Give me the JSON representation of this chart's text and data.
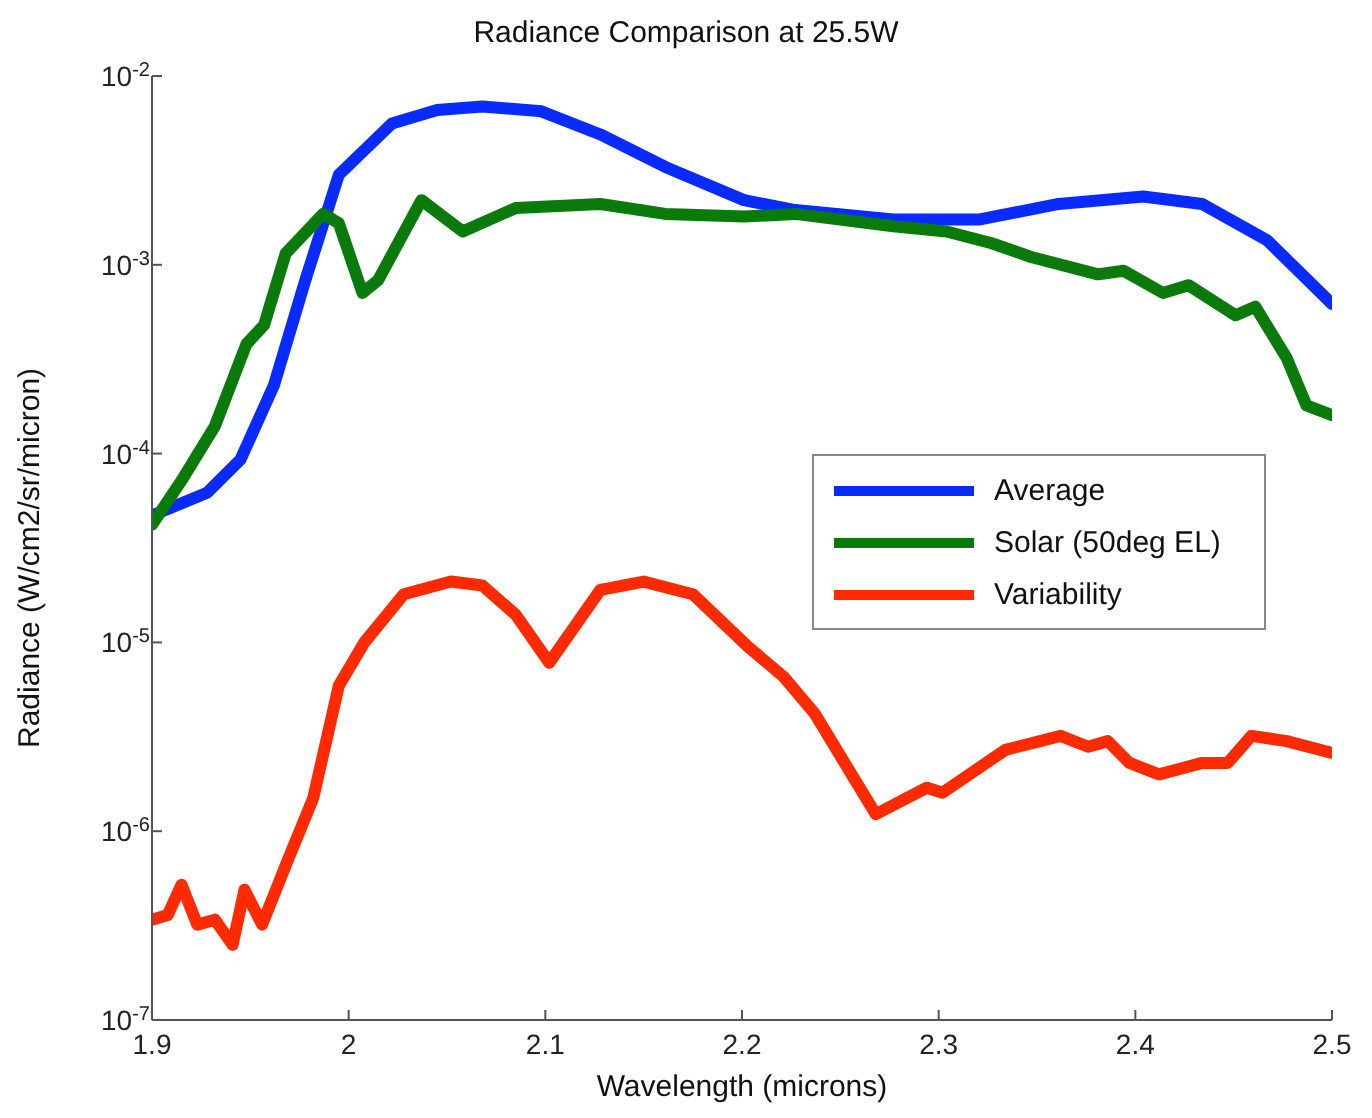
{
  "chart_data": {
    "type": "line",
    "title": "Radiance Comparison at 25.5W",
    "xlabel": "Wavelength (microns)",
    "ylabel": "Radiance (W/cm2/sr/micron)",
    "log": "y",
    "grid": false,
    "legend": "right",
    "marker": "none",
    "line_style": "solid",
    "xlim": [
      1.9,
      2.5
    ],
    "xticks": [
      1.9,
      2,
      2.1,
      2.2,
      2.3,
      2.4,
      2.5
    ],
    "ylim": [
      1e-07,
      0.01
    ],
    "yticks": [
      {
        "value": 1e-07,
        "label": "10$^{-7}$"
      },
      {
        "value": 1e-06,
        "label": "10$^{-6}$"
      },
      {
        "value": 1e-05,
        "label": "10$^{-5}$"
      },
      {
        "value": 0.0001,
        "label": "10$^{-4}$"
      },
      {
        "value": 0.001,
        "label": "10$^{-3}$"
      },
      {
        "value": 0.01,
        "label": "10$^{-2}$"
      }
    ],
    "series": [
      {
        "name": "Average",
        "color": "#0a2bff",
        "x": [
          1.9,
          1.928,
          1.945,
          1.962,
          1.978,
          1.995,
          2.022,
          2.045,
          2.068,
          2.098,
          2.128,
          2.161,
          2.201,
          2.227,
          2.277,
          2.321,
          2.361,
          2.404,
          2.434,
          2.467,
          2.5
        ],
        "values": [
          4.7e-05,
          6.2e-05,
          9.3e-05,
          0.00023,
          0.00083,
          0.003,
          0.0056,
          0.0066,
          0.0069,
          0.0065,
          0.0049,
          0.0033,
          0.0022,
          0.00195,
          0.00174,
          0.00174,
          0.0021,
          0.0023,
          0.0021,
          0.00135,
          0.00062
        ]
      },
      {
        "name": "Solar (50deg EL)",
        "color": "#0a7a0a",
        "x": [
          1.9,
          1.915,
          1.932,
          1.948,
          1.957,
          1.968,
          1.987,
          1.995,
          2.007,
          2.015,
          2.037,
          2.058,
          2.085,
          2.128,
          2.161,
          2.201,
          2.227,
          2.277,
          2.304,
          2.327,
          2.347,
          2.381,
          2.394,
          2.414,
          2.427,
          2.451,
          2.461,
          2.477,
          2.487,
          2.5
        ],
        "values": [
          4.2e-05,
          7.2e-05,
          0.00014,
          0.00038,
          0.00048,
          0.00115,
          0.00186,
          0.00166,
          0.00071,
          0.00083,
          0.0022,
          0.0015,
          0.002,
          0.0021,
          0.00186,
          0.0018,
          0.00186,
          0.0016,
          0.0015,
          0.0013,
          0.0011,
          0.00089,
          0.00093,
          0.00071,
          0.00078,
          0.00054,
          0.0006,
          0.00032,
          0.00018,
          0.00016
        ]
      },
      {
        "name": "Variability",
        "color": "#ff2a00",
        "x": [
          1.9,
          1.908,
          1.915,
          1.923,
          1.932,
          1.941,
          1.947,
          1.956,
          1.968,
          1.982,
          1.995,
          2.008,
          2.028,
          2.052,
          2.068,
          2.085,
          2.102,
          2.128,
          2.15,
          2.175,
          2.203,
          2.221,
          2.237,
          2.257,
          2.268,
          2.294,
          2.302,
          2.334,
          2.362,
          2.376,
          2.386,
          2.397,
          2.412,
          2.434,
          2.447,
          2.459,
          2.477,
          2.5
        ],
        "values": [
          3.4e-07,
          3.6e-07,
          5.2e-07,
          3.2e-07,
          3.4e-07,
          2.5e-07,
          4.9e-07,
          3.2e-07,
          6.6e-07,
          1.5e-06,
          5.9e-06,
          1e-05,
          1.8e-05,
          2.1e-05,
          2e-05,
          1.4e-05,
          7.8e-06,
          1.9e-05,
          2.1e-05,
          1.8e-05,
          9.5e-06,
          6.6e-06,
          4.2e-06,
          1.9e-06,
          1.23e-06,
          1.7e-06,
          1.6e-06,
          2.7e-06,
          3.2e-06,
          2.8e-06,
          3e-06,
          2.3e-06,
          2e-06,
          2.3e-06,
          2.3e-06,
          3.2e-06,
          3e-06,
          2.6e-06
        ]
      }
    ]
  }
}
